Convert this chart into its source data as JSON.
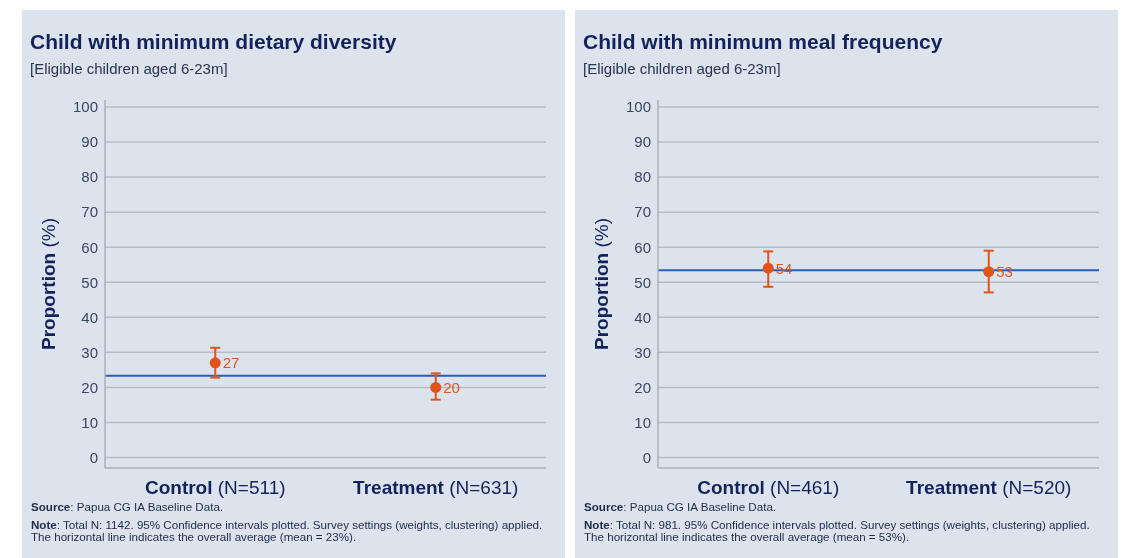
{
  "chart_data": [
    {
      "type": "scatter",
      "title": "Child with minimum dietary diversity",
      "subtitle": "[Eligible children aged 6-23m]",
      "ylabel": "Proportion (%)",
      "categories": [
        "Control (N=511)",
        "Treatment (N=631)"
      ],
      "values": [
        27,
        20
      ],
      "errors": [
        [
          22.8,
          31.3
        ],
        [
          16.5,
          24.0
        ]
      ],
      "color": "#e2531a",
      "marker": "circle",
      "data_labels": true,
      "ylim": [
        -3,
        102
      ],
      "yticks": [
        0,
        10,
        20,
        30,
        40,
        50,
        60,
        70,
        80,
        90,
        100
      ],
      "grid": "y",
      "ref_lines": [
        {
          "axis": "y",
          "value": 23.3,
          "color": "#2c5cba"
        }
      ],
      "annotations": [
        "Source: Papua CG IA Baseline Data.",
        "Note: Total N: 1142. 95% Confidence intervals plotted. Survey settings (weights, clustering) applied. The horizontal line indicates the overall average (mean = 23%)."
      ]
    },
    {
      "type": "scatter",
      "title": "Child with minimum meal frequency",
      "subtitle": "[Eligible children aged 6-23m]",
      "ylabel": "Proportion (%)",
      "categories": [
        "Control (N=461)",
        "Treatment (N=520)"
      ],
      "values": [
        54,
        53
      ],
      "errors": [
        [
          48.7,
          58.8
        ],
        [
          47.1,
          59.0
        ]
      ],
      "color": "#e2531a",
      "marker": "circle",
      "data_labels": true,
      "ylim": [
        -3,
        102
      ],
      "yticks": [
        0,
        10,
        20,
        30,
        40,
        50,
        60,
        70,
        80,
        90,
        100
      ],
      "grid": "y",
      "ref_lines": [
        {
          "axis": "y",
          "value": 53.4,
          "color": "#2c5cba"
        }
      ],
      "annotations": [
        "Source: Papua CG IA Baseline Data.",
        "Note: Total N: 981. 95% Confidence intervals plotted. Survey settings (weights, clustering) applied. The horizontal line indicates the overall average (mean = 53%)."
      ]
    }
  ]
}
